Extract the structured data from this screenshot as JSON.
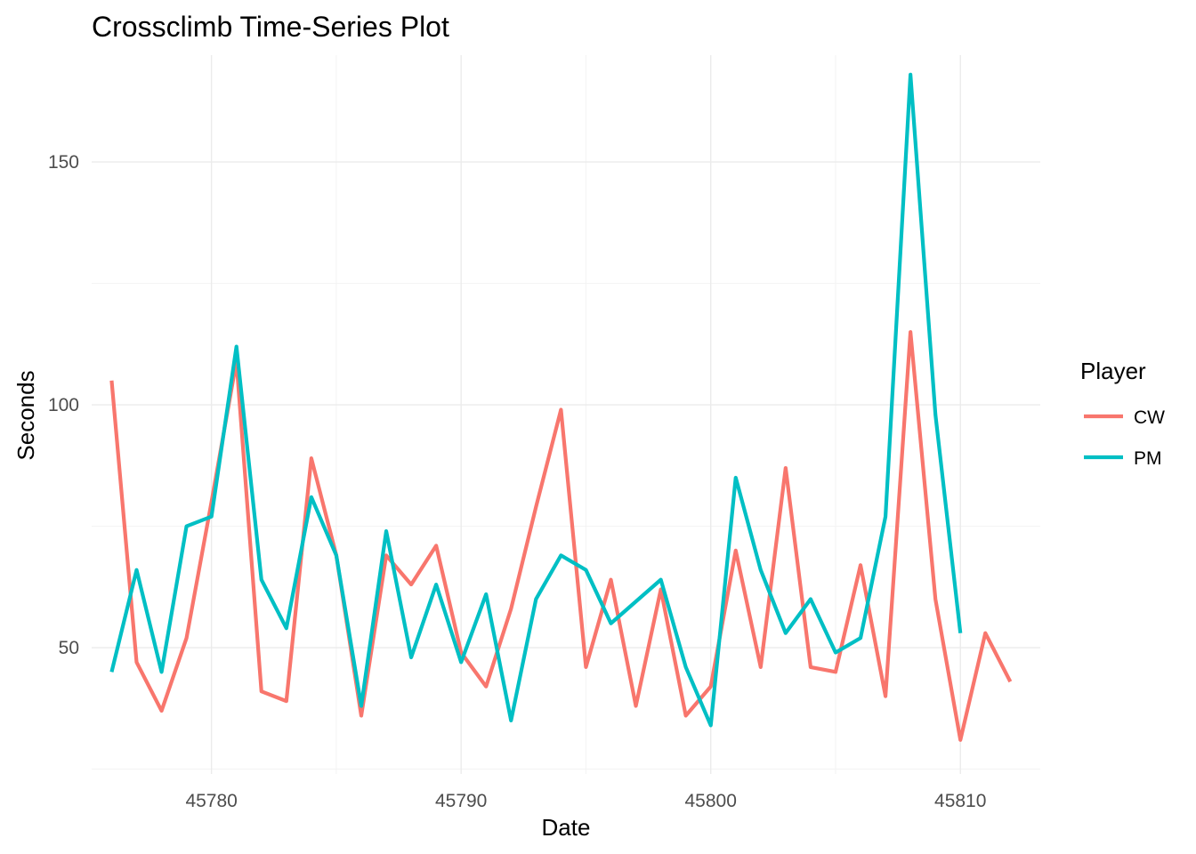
{
  "chart_data": {
    "type": "line",
    "title": "Crossclimb Time-Series Plot",
    "xlabel": "Date",
    "ylabel": "Seconds",
    "xlim": [
      45775.2,
      45813.2
    ],
    "ylim": [
      24,
      172
    ],
    "x_ticks": [
      45780,
      45790,
      45800,
      45810
    ],
    "y_ticks": [
      50,
      100,
      150
    ],
    "grid": true,
    "legend": {
      "title": "Player",
      "position": "right"
    },
    "series": [
      {
        "name": "CW",
        "color": "#F8766D",
        "points": [
          [
            45776,
            105
          ],
          [
            45777,
            47
          ],
          [
            45778,
            37
          ],
          [
            45779,
            52
          ],
          [
            45780,
            80
          ],
          [
            45781,
            109
          ],
          [
            45782,
            41
          ],
          [
            45783,
            39
          ],
          [
            45784,
            89
          ],
          [
            45785,
            69
          ],
          [
            45786,
            36
          ],
          [
            45787,
            69
          ],
          [
            45788,
            63
          ],
          [
            45789,
            71
          ],
          [
            45790,
            49
          ],
          [
            45791,
            42
          ],
          [
            45792,
            58
          ],
          [
            45793,
            79
          ],
          [
            45794,
            99
          ],
          [
            45795,
            46
          ],
          [
            45796,
            64
          ],
          [
            45797,
            38
          ],
          [
            45798,
            62
          ],
          [
            45799,
            36
          ],
          [
            45800,
            42
          ],
          [
            45801,
            70
          ],
          [
            45802,
            46
          ],
          [
            45803,
            87
          ],
          [
            45804,
            46
          ],
          [
            45805,
            45
          ],
          [
            45806,
            67
          ],
          [
            45807,
            40
          ],
          [
            45808,
            115
          ],
          [
            45809,
            60
          ],
          [
            45810,
            31
          ],
          [
            45811,
            53
          ],
          [
            45812,
            43
          ]
        ]
      },
      {
        "name": "PM",
        "color": "#00BFC4",
        "points": [
          [
            45776,
            45
          ],
          [
            45777,
            66
          ],
          [
            45778,
            45
          ],
          [
            45779,
            75
          ],
          [
            45780,
            77
          ],
          [
            45781,
            112
          ],
          [
            45782,
            64
          ],
          [
            45783,
            54
          ],
          [
            45784,
            81
          ],
          [
            45785,
            69
          ],
          [
            45786,
            38
          ],
          [
            45787,
            74
          ],
          [
            45788,
            48
          ],
          [
            45789,
            63
          ],
          [
            45790,
            47
          ],
          [
            45791,
            61
          ],
          [
            45792,
            35
          ],
          [
            45793,
            60
          ],
          [
            45794,
            69
          ],
          [
            45795,
            66
          ],
          [
            45796,
            55
          ],
          [
            45798,
            64
          ],
          [
            45799,
            46
          ],
          [
            45800,
            34
          ],
          [
            45801,
            85
          ],
          [
            45802,
            66
          ],
          [
            45803,
            53
          ],
          [
            45804,
            60
          ],
          [
            45805,
            49
          ],
          [
            45806,
            52
          ],
          [
            45807,
            77
          ],
          [
            45808,
            168
          ],
          [
            45809,
            98
          ],
          [
            45810,
            53
          ]
        ]
      }
    ]
  }
}
